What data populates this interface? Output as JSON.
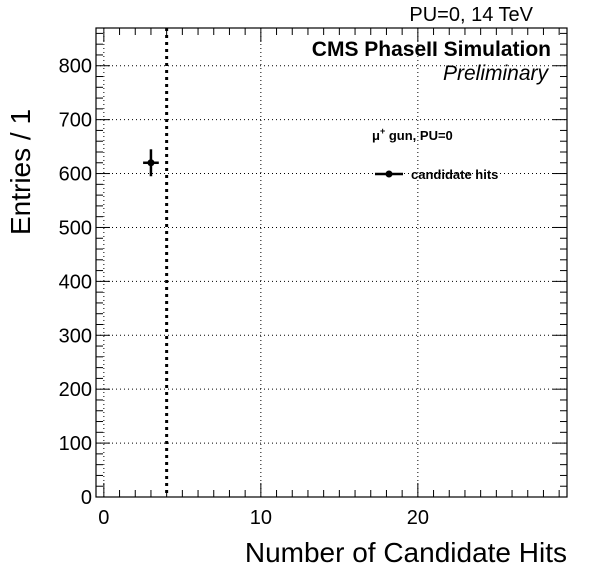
{
  "header": {
    "top_right": "PU=0, 14 TeV",
    "experiment": "CMS PhaseII Simulation",
    "status": "Preliminary"
  },
  "legend": {
    "header_prefix": "μ",
    "header_sup": "+",
    "header_rest": " gun, PU=0",
    "entry": "candidate hits",
    "placement": "top-right"
  },
  "chart_data": {
    "type": "scatter",
    "title": "",
    "xlabel": "Number of Candidate Hits",
    "ylabel": "Entries / 1",
    "xlim": [
      -0.5,
      29.5
    ],
    "ylim": [
      0,
      870
    ],
    "x_ticks": [
      0,
      10,
      20
    ],
    "y_ticks": [
      0,
      100,
      200,
      300,
      400,
      500,
      600,
      700,
      800
    ],
    "grid": true,
    "series": [
      {
        "name": "candidate hits",
        "color": "#000000",
        "points": [
          {
            "x": 3,
            "y": 620,
            "xerr": 0.5,
            "yerr": 25
          }
        ]
      }
    ],
    "vertical_line": {
      "x": 4,
      "style": "dotted",
      "color": "#000000"
    }
  }
}
